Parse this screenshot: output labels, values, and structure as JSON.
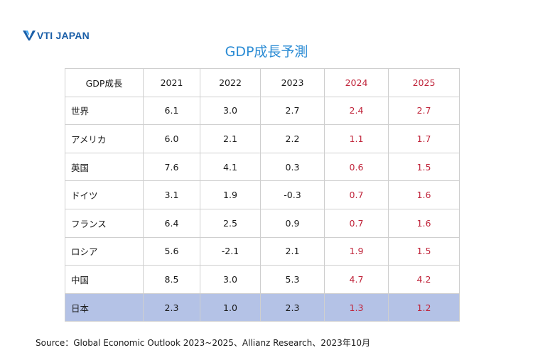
{
  "logo": {
    "text": "VTI JAPAN"
  },
  "title": "GDP成長予測",
  "table": {
    "columns": [
      "GDP成長",
      "2021",
      "2022",
      "2023",
      "2024",
      "2025"
    ],
    "projection_columns": [
      "2024",
      "2025"
    ],
    "projection_color": "#c0243a",
    "highlight_color": "#b4c2e6",
    "rows": [
      {
        "label": "世界",
        "values": [
          "6.1",
          "3.0",
          "2.7",
          "2.4",
          "2.7"
        ]
      },
      {
        "label": "アメリカ",
        "values": [
          "6.0",
          "2.1",
          "2.2",
          "1.1",
          "1.7"
        ]
      },
      {
        "label": "英国",
        "values": [
          "7.6",
          "4.1",
          "0.3",
          "0.6",
          "1.5"
        ]
      },
      {
        "label": "ドイツ",
        "values": [
          "3.1",
          "1.9",
          "-0.3",
          "0.7",
          "1.6"
        ]
      },
      {
        "label": "フランス",
        "values": [
          "6.4",
          "2.5",
          "0.9",
          "0.7",
          "1.6"
        ]
      },
      {
        "label": "ロシア",
        "values": [
          "5.6",
          "-2.1",
          "2.1",
          "1.9",
          "1.5"
        ]
      },
      {
        "label": "中国",
        "values": [
          "8.5",
          "3.0",
          "5.3",
          "4.7",
          "4.2"
        ]
      },
      {
        "label": "日本",
        "values": [
          "2.3",
          "1.0",
          "2.3",
          "1.3",
          "1.2"
        ],
        "highlight": true
      }
    ]
  },
  "source": "Source：Global Economic Outlook 2023~2025、Allianz Research、2023年10月"
}
